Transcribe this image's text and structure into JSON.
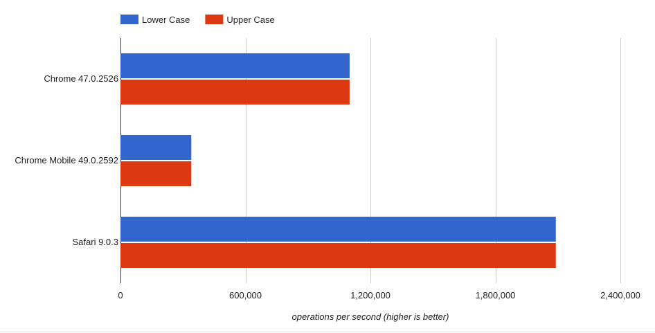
{
  "chart_data": {
    "type": "bar",
    "orientation": "horizontal",
    "categories": [
      "Chrome 47.0.2526",
      "Chrome Mobile 49.0.2592",
      "Safari 9.0.3"
    ],
    "series": [
      {
        "name": "Lower Case",
        "color": "#3366cc",
        "values": [
          1100000,
          340000,
          2090000
        ]
      },
      {
        "name": "Upper Case",
        "color": "#dc3912",
        "values": [
          1100000,
          340000,
          2090000
        ]
      }
    ],
    "xlabel": "operations per second (higher is better)",
    "ylabel": "",
    "xlim": [
      0,
      2400000
    ],
    "xticks": [
      0,
      600000,
      1200000,
      1800000,
      2400000
    ],
    "xtick_labels": [
      "0",
      "600,000",
      "1,200,000",
      "1,800,000",
      "2,400,000"
    ],
    "grid": true,
    "legend_position": "top-left"
  }
}
